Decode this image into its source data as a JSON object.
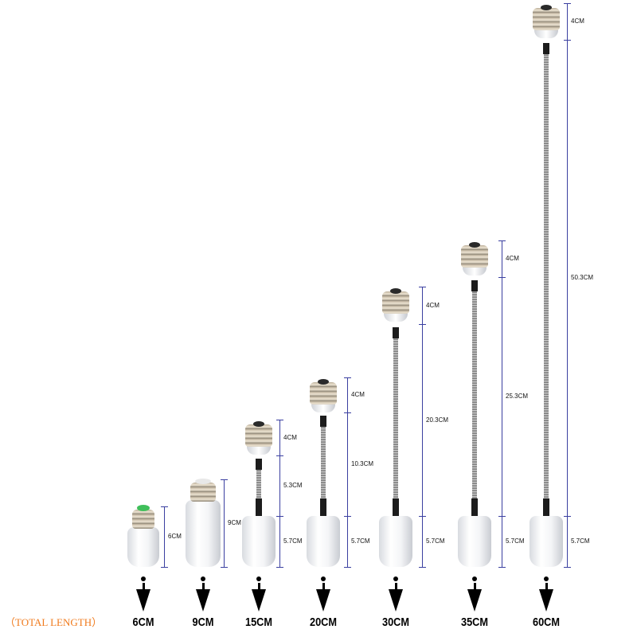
{
  "caption": "（TOTAL LENGTH）",
  "colors": {
    "caption": "#f07a1c",
    "dimension_line": "#3a3fa0"
  },
  "products": [
    {
      "total": "6CM",
      "segments": [
        "6CM"
      ]
    },
    {
      "total": "9CM",
      "segments": [
        "9CM"
      ]
    },
    {
      "total": "15CM",
      "segments": [
        "4CM",
        "5.3CM",
        "5.7CM"
      ]
    },
    {
      "total": "20CM",
      "segments": [
        "4CM",
        "10.3CM",
        "5.7CM"
      ]
    },
    {
      "total": "30CM",
      "segments": [
        "4CM",
        "20.3CM",
        "5.7CM"
      ]
    },
    {
      "total": "35CM",
      "segments": [
        "4CM",
        "25.3CM",
        "5.7CM"
      ]
    },
    {
      "total": "60CM",
      "segments": [
        "4CM",
        "50.3CM",
        "5.7CM"
      ]
    }
  ]
}
